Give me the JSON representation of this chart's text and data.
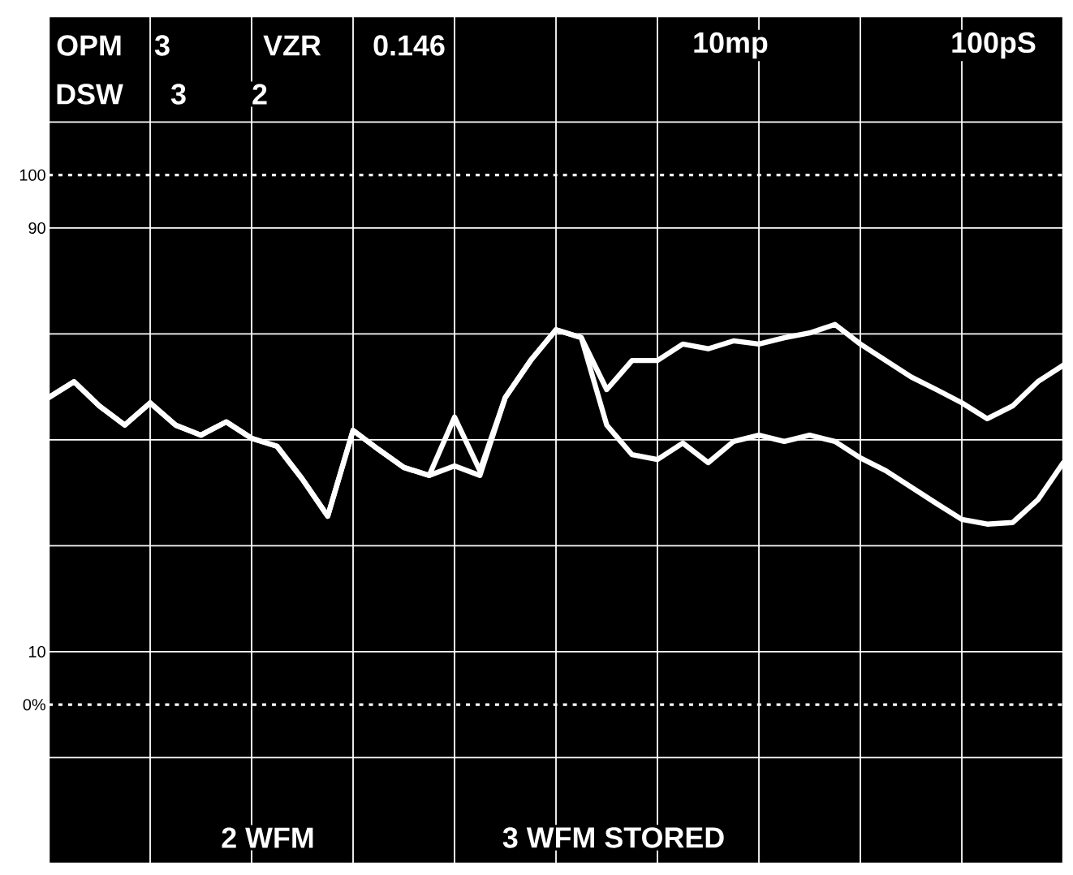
{
  "chart_data": {
    "type": "line",
    "annotations": [
      "OPM",
      "3",
      "VZR",
      "0.146",
      "10mp",
      "100pS",
      "DSW",
      "3",
      "2",
      "2 WFM",
      "3 WFM STORED"
    ],
    "categories": [
      null,
      null,
      null,
      null,
      null,
      null,
      null,
      null,
      null,
      null,
      null,
      null,
      null,
      null,
      null,
      null,
      null,
      null,
      null,
      null,
      null,
      null,
      null,
      null,
      null,
      null,
      null,
      null,
      null,
      null,
      null,
      null,
      null,
      null,
      null,
      null,
      null,
      null,
      null,
      null,
      null
    ],
    "series": [
      {
        "color": "#ffffff",
        "values": [
          58.0,
          61.0,
          56.4,
          52.8,
          57.0,
          52.8,
          50.9,
          53.4,
          50.3,
          48.8,
          42.6,
          35.6,
          51.8,
          48.2,
          44.8,
          43.3,
          54.3,
          44.2,
          58.0,
          65.0,
          70.8,
          69.3,
          59.5,
          65.0,
          65.0,
          68.1,
          67.2,
          68.7,
          68.1,
          69.3,
          70.2,
          71.8,
          68.1,
          65.0,
          61.9,
          59.5,
          57.0,
          54.0,
          56.4,
          61.0,
          64.1
        ]
      },
      {
        "color": "#ffffff",
        "values": [
          58.0,
          61.0,
          56.4,
          52.8,
          57.0,
          52.8,
          50.9,
          53.4,
          50.3,
          48.8,
          42.6,
          35.6,
          51.8,
          48.2,
          44.8,
          43.3,
          45.1,
          43.3,
          58.0,
          65.0,
          70.8,
          69.3,
          52.8,
          47.2,
          46.3,
          49.4,
          45.7,
          49.7,
          50.9,
          49.7,
          50.9,
          49.7,
          46.6,
          44.2,
          41.1,
          38.0,
          35.0,
          34.1,
          34.4,
          38.7,
          45.7
        ]
      }
    ],
    "ylim": [
      -30,
      130
    ],
    "yticks": [
      {
        "value": -30,
        "label": null
      },
      {
        "value": -10,
        "label": null
      },
      10,
      {
        "value": 30,
        "label": null
      },
      {
        "value": 50,
        "label": null
      },
      {
        "value": 70,
        "label": null
      },
      90,
      {
        "value": 110,
        "label": null
      },
      {
        "value": 130,
        "label": null
      }
    ],
    "ref_lines": [
      {
        "axis": "y",
        "value": 100,
        "label": "100",
        "line_style": "dotted",
        "color": "#ffffff"
      },
      {
        "axis": "y",
        "value": 0,
        "label": "0%",
        "line_style": "dotted",
        "color": "#ffffff"
      }
    ],
    "grid": true,
    "tick_labels": "y",
    "marker": "none",
    "line_style": "solid"
  }
}
